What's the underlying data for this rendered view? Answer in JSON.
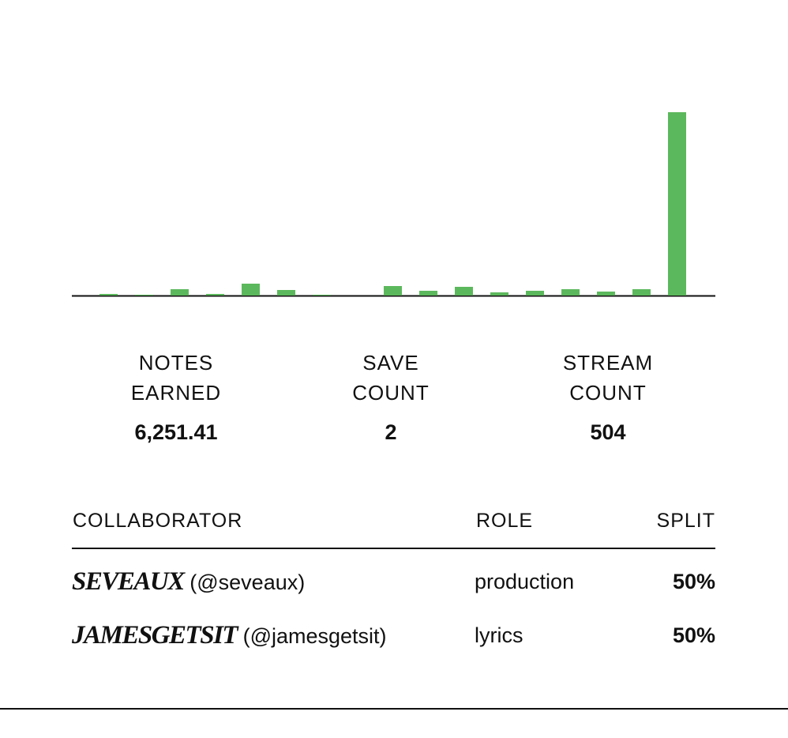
{
  "chart_data": {
    "type": "bar",
    "categories": [
      null,
      null,
      null,
      null,
      null,
      null,
      null,
      null,
      null,
      null,
      null,
      null,
      null,
      null,
      null,
      null,
      null
    ],
    "values": [
      2,
      1,
      8,
      2,
      15,
      7,
      1,
      0,
      12,
      6,
      11,
      4,
      6,
      8,
      5,
      8,
      232
    ],
    "color": "#5cb85c",
    "ylim": [
      0,
      240
    ]
  },
  "stats": [
    {
      "label": "NOTES EARNED",
      "value": "6,251.41"
    },
    {
      "label": "SAVE COUNT",
      "value": "2"
    },
    {
      "label": "STREAM COUNT",
      "value": "504"
    }
  ],
  "table": {
    "headers": [
      "COLLABORATOR",
      "ROLE",
      "SPLIT"
    ],
    "rows": [
      {
        "name": "SEVEAUX",
        "handle": "(@seveaux)",
        "role": "production",
        "split": "50%"
      },
      {
        "name": "JAMESGETSIT",
        "handle": "(@jamesgetsit)",
        "role": "lyrics",
        "split": "50%"
      }
    ]
  }
}
